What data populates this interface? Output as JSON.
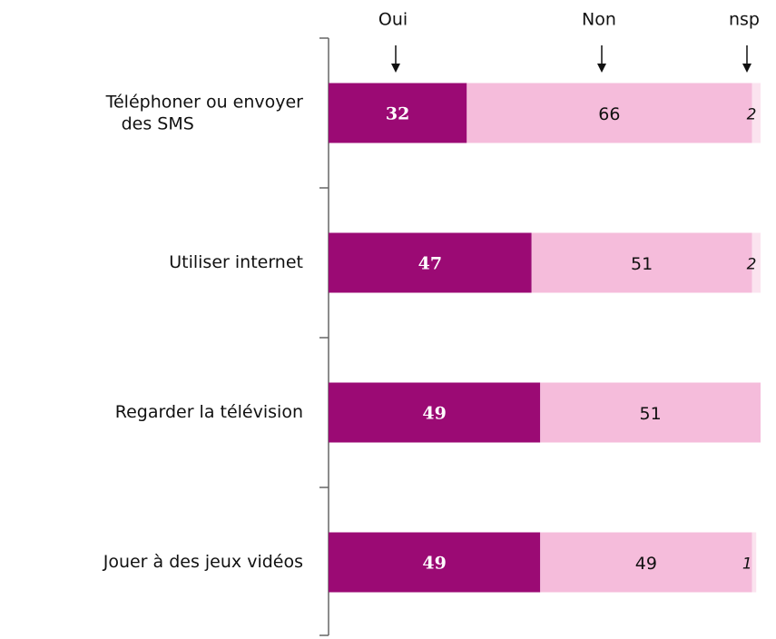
{
  "chart_data": {
    "type": "stacked-bar-horizontal",
    "categories": [
      "Téléphoner ou envoyer\ndes SMS",
      "Utiliser internet",
      "Regarder la télévision",
      "Jouer à des jeux vidéos"
    ],
    "series": [
      {
        "name": "Oui",
        "color": "#9b0a74",
        "values": [
          32,
          47,
          49,
          49
        ]
      },
      {
        "name": "Non",
        "color": "#f5bcdb",
        "values": [
          66,
          51,
          51,
          49
        ]
      },
      {
        "name": "nsp",
        "color": "#fbe3ef",
        "values": [
          2,
          2,
          null,
          1
        ]
      }
    ],
    "xlim": [
      0,
      100
    ]
  }
}
